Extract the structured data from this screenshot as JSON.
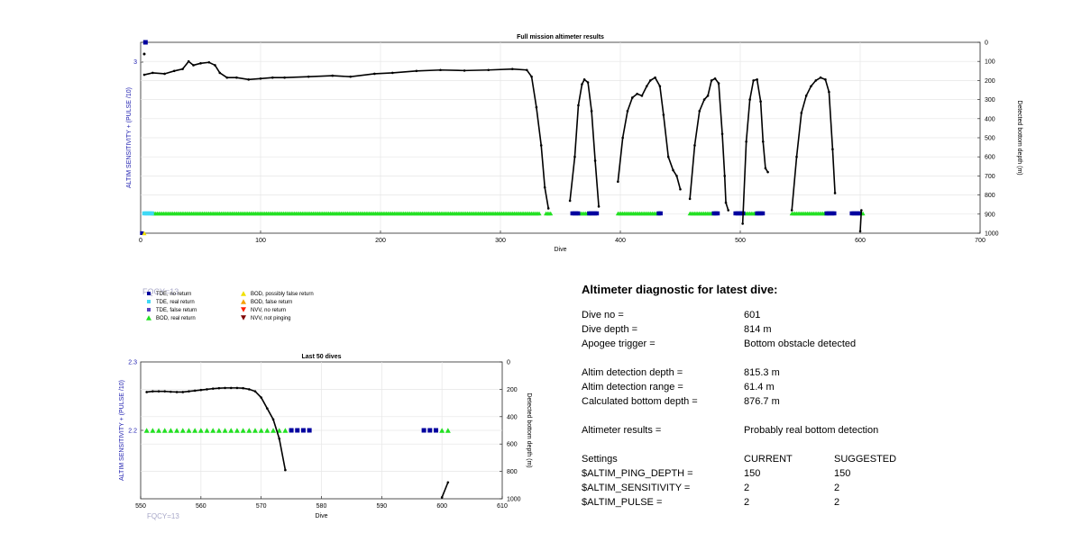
{
  "colors": {
    "tde_no_return": "#00009f",
    "tde_real_return": "#3fd9f5",
    "tde_false_return": "#5a3fbf",
    "bod_real_return": "#22e022",
    "bod_possibly_false": "#f0e000",
    "bod_false": "#f5a000",
    "nvv_no_return": "#ff2000",
    "nvv_not_pinging": "#7f0000",
    "depth_line": "#000000",
    "left_axis": "#2020b0"
  },
  "chart_data": [
    {
      "type": "scatter",
      "title": "Full mission altimeter results",
      "xlabel": "Dive",
      "ylabel_left": "ALTIM SENSITIVITY + (PULSE /10)",
      "ylabel_right": "Detected bottom depth (m)",
      "xlim": [
        0,
        700
      ],
      "x_ticks": [
        0,
        100,
        200,
        300,
        400,
        500,
        600,
        700
      ],
      "y_right_lim": [
        0,
        1000
      ],
      "y_right_ticks": [
        0,
        100,
        200,
        300,
        400,
        500,
        600,
        700,
        800,
        900,
        1000
      ],
      "y_left_tick_label": "3",
      "grid": true,
      "depth_series": [
        {
          "name": "",
          "points": [
            [
              3,
              170
            ],
            [
              10,
              160
            ],
            [
              20,
              165
            ],
            [
              28,
              150
            ],
            [
              35,
              140
            ],
            [
              40,
              100
            ],
            [
              44,
              120
            ],
            [
              50,
              110
            ],
            [
              57,
              105
            ],
            [
              62,
              120
            ],
            [
              66,
              160
            ],
            [
              72,
              185
            ],
            [
              80,
              185
            ],
            [
              90,
              195
            ],
            [
              100,
              190
            ],
            [
              110,
              185
            ],
            [
              120,
              185
            ],
            [
              140,
              180
            ],
            [
              160,
              175
            ],
            [
              175,
              180
            ],
            [
              195,
              165
            ],
            [
              210,
              160
            ],
            [
              230,
              150
            ],
            [
              250,
              145
            ],
            [
              270,
              148
            ],
            [
              290,
              145
            ],
            [
              310,
              140
            ],
            [
              322,
              145
            ],
            [
              326,
              180
            ],
            [
              330,
              340
            ],
            [
              334,
              540
            ],
            [
              337,
              760
            ],
            [
              340,
              870
            ]
          ]
        },
        {
          "name": "",
          "points": [
            [
              358,
              830
            ],
            [
              362,
              600
            ],
            [
              365,
              330
            ],
            [
              368,
              220
            ],
            [
              370,
              195
            ],
            [
              373,
              210
            ],
            [
              376,
              360
            ],
            [
              379,
              620
            ],
            [
              382,
              860
            ]
          ]
        },
        {
          "name": "",
          "points": [
            [
              398,
              730
            ],
            [
              402,
              500
            ],
            [
              406,
              360
            ],
            [
              410,
              290
            ],
            [
              414,
              270
            ],
            [
              418,
              280
            ],
            [
              422,
              230
            ],
            [
              425,
              200
            ],
            [
              429,
              185
            ],
            [
              433,
              230
            ],
            [
              436,
              380
            ],
            [
              440,
              600
            ],
            [
              444,
              670
            ],
            [
              447,
              700
            ],
            [
              450,
              770
            ]
          ]
        },
        {
          "name": "",
          "points": [
            [
              458,
              820
            ],
            [
              462,
              540
            ],
            [
              466,
              360
            ],
            [
              470,
              300
            ],
            [
              473,
              280
            ],
            [
              476,
              200
            ],
            [
              479,
              190
            ],
            [
              482,
              215
            ],
            [
              485,
              480
            ],
            [
              487,
              700
            ],
            [
              488,
              840
            ],
            [
              490,
              880
            ]
          ]
        },
        {
          "name": "",
          "points": [
            [
              502,
              950
            ],
            [
              505,
              520
            ],
            [
              508,
              300
            ],
            [
              511,
              200
            ],
            [
              514,
              195
            ],
            [
              517,
              310
            ],
            [
              519,
              520
            ],
            [
              521,
              660
            ],
            [
              523,
              680
            ]
          ]
        },
        {
          "name": "",
          "points": [
            [
              543,
              880
            ],
            [
              547,
              600
            ],
            [
              551,
              370
            ],
            [
              555,
              280
            ],
            [
              559,
              230
            ],
            [
              563,
              200
            ],
            [
              567,
              185
            ],
            [
              571,
              195
            ],
            [
              574,
              260
            ],
            [
              577,
              560
            ],
            [
              579,
              790
            ]
          ]
        },
        {
          "name": "",
          "points": [
            [
              600,
              990
            ],
            [
              601,
              880
            ]
          ]
        }
      ],
      "bod_real_ranges": [
        [
          10,
          333
        ],
        [
          338,
          342
        ],
        [
          366,
          374
        ],
        [
          398,
          432
        ],
        [
          458,
          478
        ],
        [
          504,
          514
        ],
        [
          543,
          572
        ],
        [
          601,
          603
        ]
      ],
      "tde_no_return_ranges": [
        [
          360,
          366
        ],
        [
          374,
          382
        ],
        [
          432,
          435
        ],
        [
          478,
          482
        ],
        [
          496,
          504
        ],
        [
          514,
          520
        ],
        [
          572,
          580
        ],
        [
          593,
          600
        ]
      ],
      "tde_real_return_ranges": [
        [
          3,
          10
        ]
      ],
      "marker_at_top": {
        "x": 4,
        "type": "tde_no_return"
      },
      "markers_at_bottom": [
        {
          "x": 1,
          "type": "tde_no_return"
        },
        {
          "x": 3,
          "type": "bod_possibly_false"
        }
      ]
    },
    {
      "type": "scatter",
      "title": "Last 50 dives",
      "xlabel": "Dive",
      "ylabel_left": "ALTIM SENSITIVITY + (PULSE /10)",
      "ylabel_right": "Detected bottom depth (m)",
      "xlim": [
        550,
        610
      ],
      "x_ticks": [
        550,
        560,
        570,
        580,
        590,
        600,
        610
      ],
      "ylim_left": [
        2.1,
        2.3
      ],
      "y_left_ticks": [
        "2.3",
        "2.2"
      ],
      "y_right_lim": [
        0,
        1000
      ],
      "y_right_ticks": [
        0,
        200,
        400,
        600,
        800,
        1000
      ],
      "grid": true,
      "depth_series": [
        {
          "name": "",
          "points": [
            [
              551,
              220
            ],
            [
              552,
              215
            ],
            [
              553,
              215
            ],
            [
              554,
              215
            ],
            [
              555,
              218
            ],
            [
              556,
              220
            ],
            [
              557,
              220
            ],
            [
              558,
              215
            ],
            [
              559,
              210
            ],
            [
              560,
              205
            ],
            [
              561,
              200
            ],
            [
              562,
              195
            ],
            [
              563,
              192
            ],
            [
              564,
              190
            ],
            [
              565,
              190
            ],
            [
              566,
              190
            ],
            [
              567,
              192
            ],
            [
              568,
              200
            ],
            [
              569,
              215
            ],
            [
              570,
              260
            ],
            [
              571,
              340
            ],
            [
              572,
              420
            ],
            [
              573,
              560
            ],
            [
              574,
              790
            ]
          ]
        },
        {
          "name": "",
          "points": [
            [
              600,
              990
            ],
            [
              601,
              880
            ]
          ]
        }
      ],
      "bod_real_x": [
        551,
        552,
        553,
        554,
        555,
        556,
        557,
        558,
        559,
        560,
        561,
        562,
        563,
        564,
        565,
        566,
        567,
        568,
        569,
        570,
        571,
        572,
        573,
        574,
        600,
        601
      ],
      "tde_no_return_x": [
        575,
        576,
        577,
        578,
        597,
        598,
        599
      ]
    }
  ],
  "legend": {
    "items": [
      {
        "label": "TDE, no return",
        "type": "tde_no_return"
      },
      {
        "label": "TDE, real return",
        "type": "tde_real_return"
      },
      {
        "label": "TDE, false return",
        "type": "tde_false_return"
      },
      {
        "label": "BOD, real return",
        "type": "bod_real_return"
      },
      {
        "label": "BOD, possibly false return",
        "type": "bod_possibly_false"
      },
      {
        "label": "BOD, false return",
        "type": "bod_false"
      },
      {
        "label": "NVV, no return",
        "type": "nvv_no_return"
      },
      {
        "label": "NVV, not pinging",
        "type": "nvv_not_pinging"
      }
    ],
    "fqcy_label": "FQCY=13"
  },
  "fqcy_label_bottom": "FQCY=13",
  "diagnostic": {
    "title": "Altimeter diagnostic for latest dive:",
    "dive_no_label": "Dive no =",
    "dive_no_value": "601",
    "dive_depth_label": "Dive depth =",
    "dive_depth_value": "814 m",
    "apogee_label": "Apogee trigger =",
    "apogee_value": "Bottom obstacle detected",
    "altim_depth_label": "Altim detection depth =",
    "altim_depth_value": "815.3 m",
    "altim_range_label": "Altim detection range =",
    "altim_range_value": "61.4 m",
    "calc_depth_label": "Calculated bottom depth =",
    "calc_depth_value": "876.7 m",
    "results_label": "Altimeter results =",
    "results_value": "Probably real bottom detection",
    "settings_label": "Settings",
    "current_label": "CURRENT",
    "suggested_label": "SUGGESTED",
    "settings": [
      {
        "name": "$ALTIM_PING_DEPTH =",
        "current": "150",
        "suggested": "150"
      },
      {
        "name": "$ALTIM_SENSITIVITY =",
        "current": "2",
        "suggested": "2"
      },
      {
        "name": "$ALTIM_PULSE =",
        "current": "2",
        "suggested": "2"
      }
    ]
  }
}
